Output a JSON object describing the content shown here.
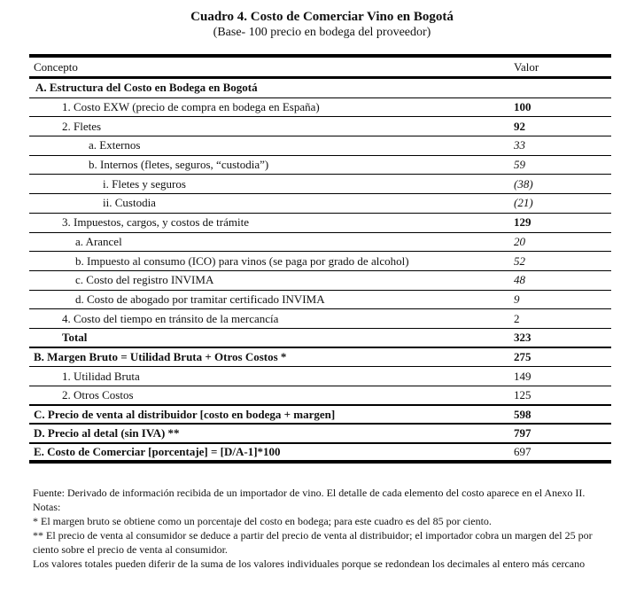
{
  "title": "Cuadro 4. Costo de Comerciar Vino en Bogotá",
  "subtitle": "(Base- 100 precio en bodega del proveedor)",
  "columns": [
    "Concepto",
    "Valor"
  ],
  "rows": [
    {
      "concepto": "A.  Estructura del Costo en Bodega en Bogotá",
      "valor": "",
      "indent": 7,
      "style": "b",
      "vstyle": ""
    },
    {
      "concepto": "1. Costo EXW (precio de compra en bodega en España)",
      "valor": "100",
      "indent": 37,
      "style": "",
      "vstyle": "b"
    },
    {
      "concepto": "2. Fletes",
      "valor": "92",
      "indent": 37,
      "style": "",
      "vstyle": "b"
    },
    {
      "concepto": "a. Externos",
      "valor": "33",
      "indent": 67,
      "style": "",
      "vstyle": "i"
    },
    {
      "concepto": "b. Internos (fletes, seguros, “custodia”)",
      "valor": "59",
      "indent": 67,
      "style": "",
      "vstyle": "i"
    },
    {
      "concepto": "i. Fletes y seguros",
      "valor": "(38)",
      "indent": 83,
      "style": "",
      "vstyle": "i"
    },
    {
      "concepto": "ii. Custodia",
      "valor": "(21)",
      "indent": 83,
      "style": "",
      "vstyle": "i"
    },
    {
      "concepto": "3. Impuestos, cargos, y costos de trámite",
      "valor": "129",
      "indent": 37,
      "style": "",
      "vstyle": "b"
    },
    {
      "concepto": "a. Arancel",
      "valor": "20",
      "indent": 52,
      "style": "",
      "vstyle": "i"
    },
    {
      "concepto": "b. Impuesto al consumo (ICO) para vinos (se paga por grado de alcohol)",
      "valor": "52",
      "indent": 52,
      "style": "",
      "vstyle": "i"
    },
    {
      "concepto": "c. Costo del registro INVIMA",
      "valor": "48",
      "indent": 52,
      "style": "",
      "vstyle": "i"
    },
    {
      "concepto": "d. Costo de abogado por tramitar certificado INVIMA",
      "valor": "9",
      "indent": 52,
      "style": "",
      "vstyle": "i"
    },
    {
      "concepto": "4. Costo del tiempo en tránsito de la mercancía",
      "valor": "2",
      "indent": 37,
      "style": "",
      "vstyle": ""
    },
    {
      "concepto": "Total",
      "valor": "323",
      "indent": 37,
      "style": "b",
      "vstyle": "b",
      "thick": true
    },
    {
      "concepto": "B. Margen Bruto = Utilidad Bruta + Otros Costos *",
      "valor": "275",
      "indent": 5,
      "style": "b",
      "vstyle": "b"
    },
    {
      "concepto": "1. Utilidad Bruta",
      "valor": "149",
      "indent": 37,
      "style": "",
      "vstyle": ""
    },
    {
      "concepto": "2. Otros Costos",
      "valor": "125",
      "indent": 37,
      "style": "",
      "vstyle": "",
      "thick": true
    },
    {
      "concepto": "C. Precio de venta al distribuidor [costo en bodega + margen]",
      "valor": "598",
      "indent": 5,
      "style": "b",
      "vstyle": "b",
      "thick": true
    },
    {
      "concepto": "D. Precio al detal (sin IVA) **",
      "valor": "797",
      "indent": 5,
      "style": "b",
      "vstyle": "b",
      "thick": true
    },
    {
      "concepto": "E. Costo de Comerciar [porcentaje] = [D/A-1]*100",
      "valor": "697",
      "indent": 5,
      "style": "b",
      "vstyle": "",
      "last": true
    }
  ],
  "notes": [
    "Fuente: Derivado de información recibida de un importador de vino. El detalle de cada elemento del costo aparece en el Anexo II.",
    "Notas:",
    "* El margen bruto se obtiene como un porcentaje del costo en bodega; para este cuadro es del 85 por ciento.",
    "** El precio de venta al consumidor se deduce a partir del precio de venta al distribuidor; el importador cobra un margen del 25 por ciento sobre el precio de venta al consumidor.",
    "Los valores totales pueden diferir de la suma de los valores individuales porque se redondean los decimales al entero más cercano"
  ]
}
